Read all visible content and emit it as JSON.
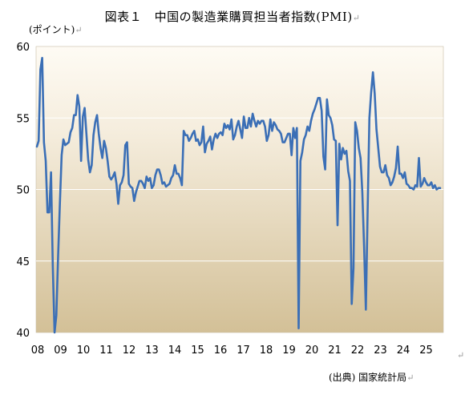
{
  "header": {
    "title": "図表１　中国の製造業購買担当者指数(PMI)",
    "unit": "(ポイント)",
    "source": "(出典) 国家統計局",
    "paragraph_mark": "↵"
  },
  "chart_data": {
    "type": "line",
    "title": "図表１　中国の製造業購買担当者指数(PMI)",
    "ylabel": "(ポイント)",
    "xlabel": "",
    "ylim": [
      40,
      60
    ],
    "yticks": [
      "40",
      "45",
      "50",
      "55",
      "60"
    ],
    "xticks": [
      "08",
      "09",
      "10",
      "11",
      "12",
      "13",
      "14",
      "15",
      "16",
      "17",
      "18",
      "19",
      "20",
      "21",
      "22",
      "23",
      "24",
      "25"
    ],
    "grid": true,
    "line_color": "#3b6fb6",
    "series": [
      {
        "name": "",
        "values": [
          53.0,
          53.4,
          58.4,
          59.2,
          53.3,
          52.0,
          48.4,
          48.4,
          51.2,
          44.6,
          38.8,
          41.2,
          45.3,
          49.0,
          52.4,
          53.5,
          53.1,
          53.2,
          53.3,
          54.0,
          54.3,
          55.2,
          55.2,
          56.6,
          55.8,
          52.0,
          55.1,
          55.7,
          53.9,
          52.1,
          51.2,
          51.7,
          53.8,
          54.7,
          55.2,
          53.9,
          52.9,
          52.2,
          53.4,
          52.9,
          52.0,
          50.9,
          50.7,
          50.9,
          51.2,
          50.4,
          49.0,
          50.3,
          50.5,
          51.0,
          53.1,
          53.3,
          50.4,
          50.2,
          50.1,
          49.2,
          49.8,
          50.2,
          50.6,
          50.6,
          50.4,
          50.1,
          50.9,
          50.6,
          50.8,
          50.1,
          50.3,
          51.0,
          51.4,
          51.4,
          51.0,
          50.4,
          50.5,
          50.2,
          50.3,
          50.4,
          50.8,
          51.0,
          51.7,
          51.1,
          51.1,
          50.8,
          50.3,
          54.1,
          53.8,
          53.8,
          53.4,
          53.6,
          53.9,
          54.1,
          53.4,
          53.5,
          53.1,
          53.3,
          54.4,
          52.6,
          53.2,
          53.4,
          53.7,
          52.8,
          53.5,
          53.9,
          53.6,
          53.9,
          54.0,
          53.8,
          54.6,
          54.3,
          54.5,
          54.2,
          54.9,
          53.5,
          53.8,
          54.4,
          54.8,
          54.2,
          53.6,
          55.1,
          54.3,
          54.3,
          55.0,
          54.4,
          55.3,
          54.8,
          54.4,
          54.8,
          54.6,
          54.8,
          54.8,
          54.4,
          53.4,
          53.8,
          54.9,
          54.1,
          54.7,
          54.5,
          54.2,
          54.1,
          53.9,
          53.3,
          53.3,
          53.6,
          53.9,
          53.9,
          52.4,
          54.3,
          53.6,
          54.3,
          40.3,
          52.0,
          52.6,
          53.5,
          53.8,
          54.4,
          54.1,
          54.8,
          55.3,
          55.6,
          56.0,
          56.4,
          56.4,
          55.5,
          52.3,
          51.4,
          56.3,
          55.2,
          55.0,
          54.5,
          53.5,
          53.4,
          47.5,
          53.2,
          52.1,
          52.9,
          52.5,
          52.7,
          51.3,
          50.6,
          42.0,
          44.5,
          54.7,
          54.1,
          52.9,
          52.2,
          49.8,
          46.0,
          41.6,
          48.5,
          55.0,
          56.8,
          58.2,
          56.7,
          54.2,
          52.9,
          51.6,
          51.2,
          51.2,
          51.7,
          51.0,
          50.8,
          50.3,
          50.5,
          50.9,
          51.5,
          53.0,
          51.1,
          51.1,
          50.8,
          51.2,
          50.4,
          50.3,
          50.1,
          50.1,
          50.0,
          50.3,
          50.2,
          52.2,
          50.2,
          50.4,
          50.8,
          50.5,
          50.3,
          50.3,
          50.5,
          50.1,
          50.3,
          50.0,
          50.1,
          50.1
        ]
      }
    ]
  }
}
